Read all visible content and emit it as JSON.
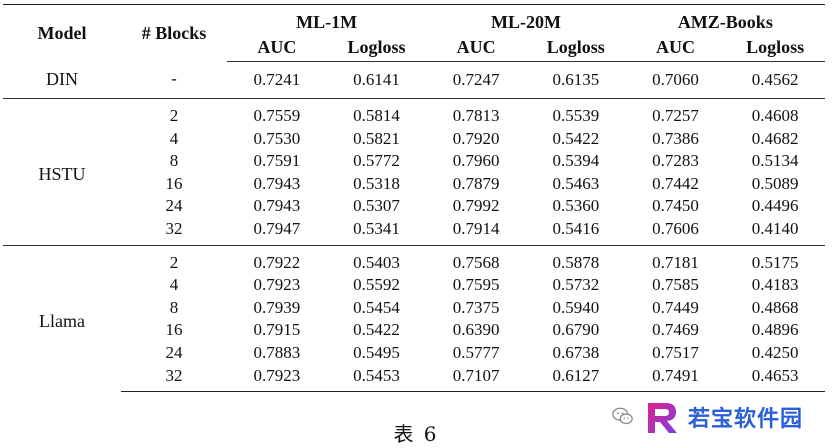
{
  "table": {
    "header": {
      "model": "Model",
      "blocks": "# Blocks",
      "datasets": [
        "ML-1M",
        "ML-20M",
        "AMZ-Books"
      ],
      "metrics": [
        "AUC",
        "Logloss",
        "AUC",
        "Logloss",
        "AUC",
        "Logloss"
      ]
    },
    "din": {
      "model": "DIN",
      "blocks": "-",
      "values": [
        "0.7241",
        "0.6141",
        "0.7247",
        "0.6135",
        "0.7060",
        "0.4562"
      ]
    },
    "hstu": {
      "model": "HSTU",
      "rows": [
        {
          "blocks": "2",
          "values": [
            "0.7559",
            "0.5814",
            "0.7813",
            "0.5539",
            "0.7257",
            "0.4608"
          ]
        },
        {
          "blocks": "4",
          "values": [
            "0.7530",
            "0.5821",
            "0.7920",
            "0.5422",
            "0.7386",
            "0.4682"
          ]
        },
        {
          "blocks": "8",
          "values": [
            "0.7591",
            "0.5772",
            "0.7960",
            "0.5394",
            "0.7283",
            "0.5134"
          ]
        },
        {
          "blocks": "16",
          "values": [
            "0.7943",
            "0.5318",
            "0.7879",
            "0.5463",
            "0.7442",
            "0.5089"
          ]
        },
        {
          "blocks": "24",
          "values": [
            "0.7943",
            "0.5307",
            "0.7992",
            "0.5360",
            "0.7450",
            "0.4496"
          ]
        },
        {
          "blocks": "32",
          "values": [
            "0.7947",
            "0.5341",
            "0.7914",
            "0.5416",
            "0.7606",
            "0.4140"
          ]
        }
      ]
    },
    "llama": {
      "model": "Llama",
      "rows": [
        {
          "blocks": "2",
          "values": [
            "0.7922",
            "0.5403",
            "0.7568",
            "0.5878",
            "0.7181",
            "0.5175"
          ]
        },
        {
          "blocks": "4",
          "values": [
            "0.7923",
            "0.5592",
            "0.7595",
            "0.5732",
            "0.7585",
            "0.4183"
          ]
        },
        {
          "blocks": "8",
          "values": [
            "0.7939",
            "0.5454",
            "0.7375",
            "0.5940",
            "0.7449",
            "0.4868"
          ]
        },
        {
          "blocks": "16",
          "values": [
            "0.7915",
            "0.5422",
            "0.6390",
            "0.6790",
            "0.7469",
            "0.4896"
          ]
        },
        {
          "blocks": "24",
          "values": [
            "0.7883",
            "0.5495",
            "0.5777",
            "0.6738",
            "0.7517",
            "0.4250"
          ]
        },
        {
          "blocks": "32",
          "values": [
            "0.7923",
            "0.5453",
            "0.7107",
            "0.6127",
            "0.7491",
            "0.4653"
          ]
        }
      ]
    }
  },
  "caption": "表 6",
  "watermark": {
    "icons": [
      "wechat-icon",
      "r-logo-icon"
    ],
    "brand_text": "若宝软件园",
    "brand_colors": [
      "#2a5fd8",
      "#e0208a",
      "#7b3fe0"
    ]
  }
}
